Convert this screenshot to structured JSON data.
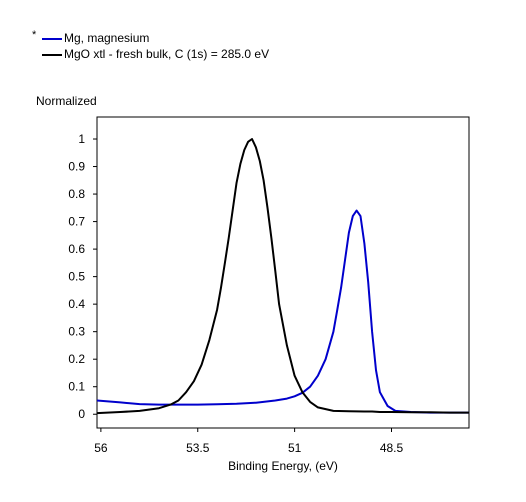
{
  "chart_data": {
    "type": "line",
    "title": "",
    "ylabel": "Normalized",
    "xlabel": "Binding Energy, (eV)",
    "xlim": [
      56.1,
      46.5
    ],
    "ylim": [
      -0.05,
      1.08
    ],
    "x_reversed": true,
    "xticks": [
      56,
      53.5,
      51,
      48.5
    ],
    "xtick_labels": [
      "56",
      "53.5",
      "51",
      "48.5"
    ],
    "yticks": [
      0,
      0.1,
      0.2,
      0.3,
      0.4,
      0.5,
      0.6,
      0.7,
      0.8,
      0.9,
      1
    ],
    "ytick_labels": [
      "0",
      "0.1",
      "0.2",
      "0.3",
      "0.4",
      "0.5",
      "0.6",
      "0.7",
      "0.8",
      "0.9",
      "1"
    ],
    "grid": false,
    "legend_position": "top-left",
    "series": [
      {
        "name": "Mg, magnesium",
        "marker": "*",
        "color": "#0000cc",
        "x": [
          56.1,
          55.5,
          55,
          54.5,
          54,
          53.5,
          53,
          52.5,
          52,
          51.5,
          51.2,
          51,
          50.8,
          50.6,
          50.4,
          50.2,
          50.0,
          49.9,
          49.8,
          49.7,
          49.6,
          49.5,
          49.4,
          49.3,
          49.2,
          49.1,
          49.0,
          48.9,
          48.8,
          48.6,
          48.4,
          48,
          47.5,
          47,
          46.5
        ],
        "y": [
          0.05,
          0.043,
          0.037,
          0.035,
          0.035,
          0.035,
          0.036,
          0.038,
          0.042,
          0.05,
          0.057,
          0.065,
          0.078,
          0.1,
          0.14,
          0.2,
          0.3,
          0.38,
          0.46,
          0.56,
          0.66,
          0.72,
          0.74,
          0.72,
          0.62,
          0.48,
          0.3,
          0.16,
          0.08,
          0.03,
          0.012,
          0.008,
          0.006,
          0.006,
          0.006
        ]
      },
      {
        "name": "MgO xtl - fresh bulk, C (1s) = 285.0 eV",
        "marker": "",
        "color": "#000000",
        "x": [
          56.1,
          55.5,
          55,
          54.5,
          54.2,
          54,
          53.8,
          53.6,
          53.4,
          53.2,
          53.0,
          52.9,
          52.8,
          52.7,
          52.6,
          52.5,
          52.4,
          52.3,
          52.2,
          52.1,
          52.0,
          51.9,
          51.8,
          51.7,
          51.6,
          51.5,
          51.4,
          51.2,
          51.0,
          50.8,
          50.6,
          50.4,
          50.0,
          49.6,
          49.2,
          49.0,
          48.8,
          48.5,
          48,
          47.5,
          47,
          46.5
        ],
        "y": [
          0.004,
          0.008,
          0.012,
          0.022,
          0.035,
          0.05,
          0.08,
          0.12,
          0.18,
          0.27,
          0.38,
          0.46,
          0.55,
          0.64,
          0.74,
          0.84,
          0.91,
          0.96,
          0.99,
          1.0,
          0.97,
          0.92,
          0.85,
          0.75,
          0.64,
          0.52,
          0.4,
          0.25,
          0.14,
          0.08,
          0.045,
          0.025,
          0.012,
          0.011,
          0.01,
          0.01,
          0.008,
          0.008,
          0.007,
          0.007,
          0.006,
          0.006
        ]
      }
    ]
  }
}
